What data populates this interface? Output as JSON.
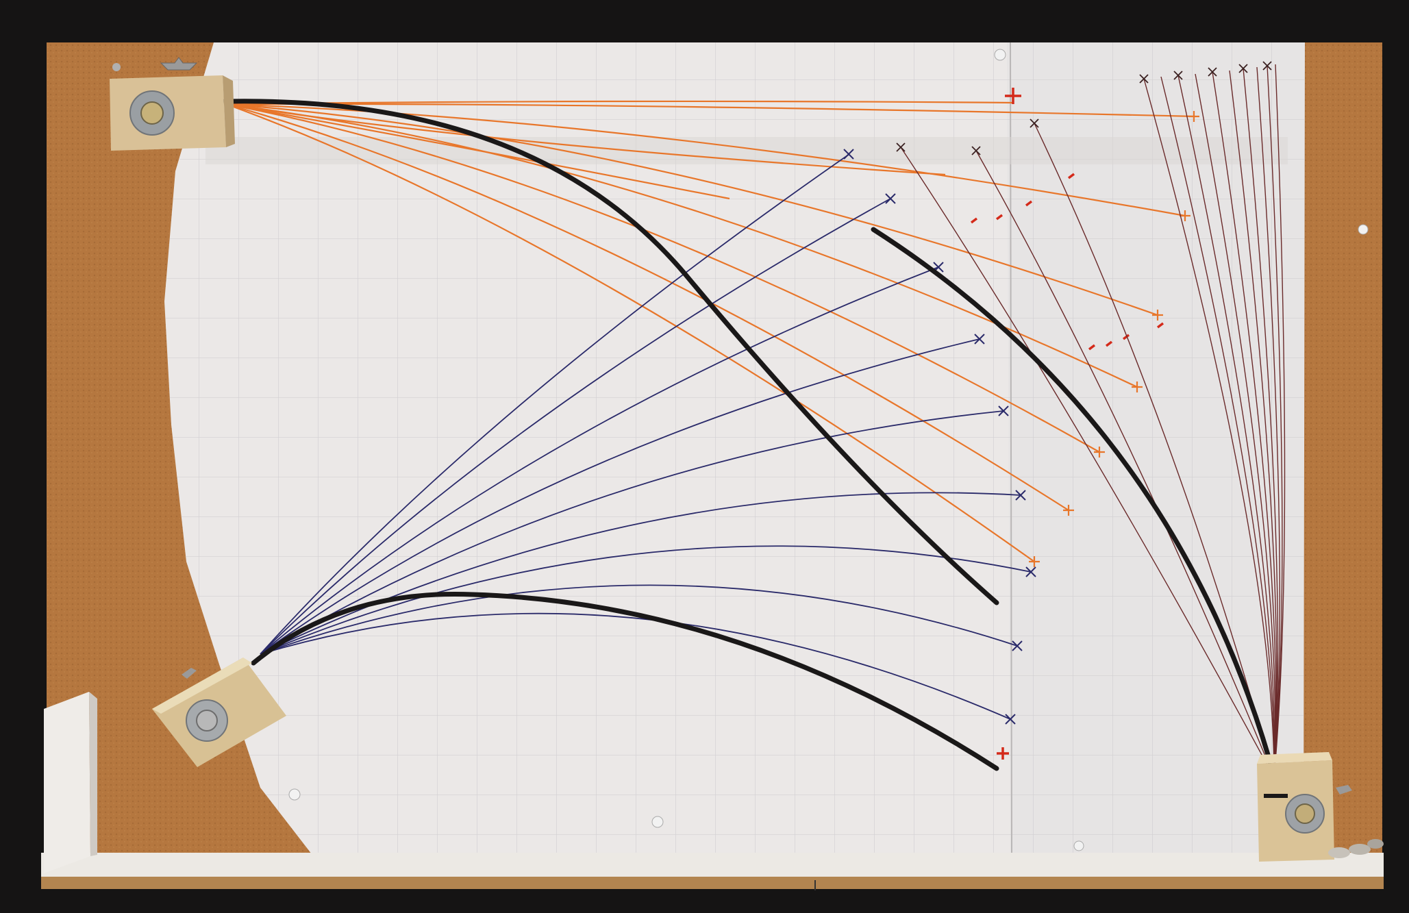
{
  "colors": {
    "frame": "#151414",
    "cork": "#b5773f",
    "paper": "#e9e6e5",
    "grid": "#c9c7c9",
    "shelf": "#ece9e4",
    "wood": "#dcc49a",
    "strip": "#1a1818",
    "orange": "#e8762a",
    "red": "#d42a1a",
    "navy": "#2a2a6a",
    "maroon": "#6a2a2a"
  },
  "objects": {
    "clamp_count": 3,
    "black_strip_count": 4,
    "curve_families": [
      "orange",
      "navy",
      "maroon"
    ]
  }
}
